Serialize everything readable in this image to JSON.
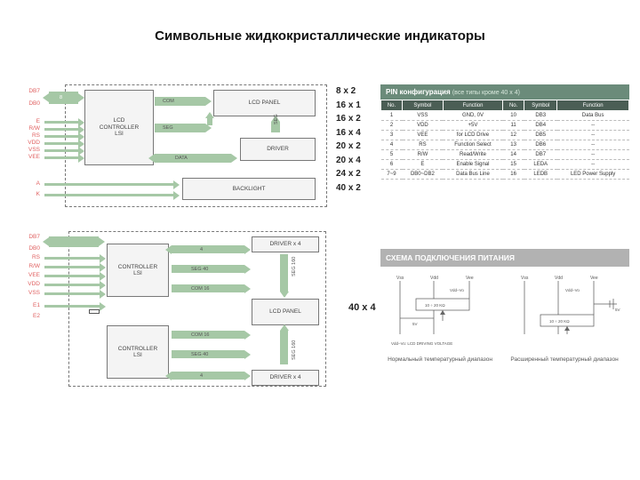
{
  "title": "Символьные жидкокристаллические индикаторы",
  "diagram1": {
    "blocks": {
      "controller": "LCD\nCONTROLLER\nLSI",
      "panel": "LCD PANEL",
      "driver": "DRIVER",
      "backlight": "BACKLIGHT"
    },
    "arrows": {
      "com": "COM",
      "seg": "SEG",
      "seg2": "SEG",
      "data": "DATA"
    },
    "pins": [
      "DB7",
      "DB0",
      "E",
      "R/W",
      "RS",
      "VDD",
      "VSS",
      "VEE",
      "A",
      "K"
    ],
    "bus8": "8"
  },
  "sizelist": [
    "8 x 2",
    "16 x 1",
    "16 x 2",
    "16 x 4",
    "20 x 2",
    "20 x 4",
    "24 x 2",
    "40 x 2"
  ],
  "pin_config": {
    "header": "PIN конфигурация",
    "header_sub": "(все типы кроме 40 x 4)",
    "columns": [
      "No.",
      "Symbol",
      "Function",
      "No.",
      "Symbol",
      "Function"
    ],
    "rows": [
      [
        "1",
        "VSS",
        "GND, 0V",
        "10",
        "DB3",
        "Data Bus"
      ],
      [
        "2",
        "VDD",
        "+5V",
        "11",
        "DB4",
        "--"
      ],
      [
        "3",
        "VEE",
        "for LCD Drive",
        "12",
        "DB5",
        "--"
      ],
      [
        "4",
        "RS",
        "Function Select",
        "13",
        "DB6",
        "--"
      ],
      [
        "5",
        "R/W",
        "Read/Write",
        "14",
        "DB7",
        "--"
      ],
      [
        "6",
        "E",
        "Enable Signal",
        "15",
        "LEDA",
        "--"
      ],
      [
        "7~9",
        "DB0~DB2",
        "Data Bus Line",
        "16",
        "LEDB",
        "LED Power Supply"
      ]
    ]
  },
  "diagram2": {
    "blocks": {
      "controller1": "CONTROLLER\nLSI",
      "controller2": "CONTROLLER\nLSI",
      "driver1": "DRIVER x 4",
      "driver2": "DRIVER x 4",
      "panel": "LCD PANEL"
    },
    "arrows": {
      "a4": "4",
      "seg40a": "SEG 40",
      "com16a": "COM 16",
      "com16b": "COM 16",
      "seg40b": "SEG 40",
      "seg160a": "SEG 160",
      "seg160b": "SEG 160"
    },
    "pins": [
      "DB7",
      "DB0",
      "RS",
      "R/W",
      "VEE",
      "VDD",
      "VSS",
      "E1",
      "E2"
    ]
  },
  "size_40x4": "40 x 4",
  "power": {
    "header": "СХЕМА ПОДКЛЮЧЕНИЯ ПИТАНИЯ",
    "labels": {
      "vdd": "VDD",
      "vss": "VSS",
      "vee": "VEE",
      "pot": "10 ÷ 20 KΩ",
      "v5": "5V",
      "note_vo": "VDD-Vo: LCD DRIVING VOLTAGE",
      "vdd_vo": "VDD−Vo"
    },
    "caption1": "Нормальный температурный диапазон",
    "caption2": "Расширенный температурный диапазон"
  },
  "colors": {
    "arrow": "#a6c8a6",
    "pinLabel": "#e06060",
    "pinHdrBg": "#6b8b7a",
    "pinThBg": "#4b5e55",
    "pwrHdrBg": "#b2b2b2"
  }
}
